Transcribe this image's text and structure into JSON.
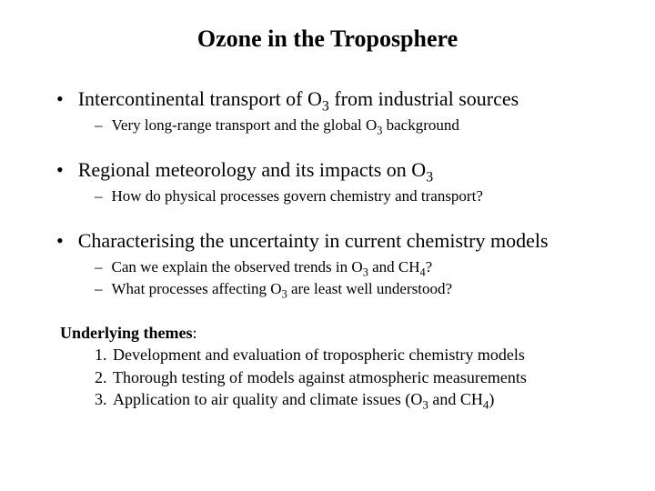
{
  "title_pre": "Ozone in the Troposphere",
  "b1_pre": "Intercontinental transport of O",
  "b1_sub": "3",
  "b1_post": " from industrial sources",
  "b1s1_pre": "Very long-range transport and the global O",
  "b1s1_sub": "3",
  "b1s1_post": " background",
  "b2_pre": "Regional meteorology and its impacts on O",
  "b2_sub": "3",
  "b2s1": "How do physical processes govern chemistry and transport?",
  "b3": "Characterising the uncertainty in current chemistry models",
  "b3s1_pre": "Can we explain the observed trends in O",
  "b3s1_sub1": "3",
  "b3s1_mid": " and CH",
  "b3s1_sub2": "4",
  "b3s1_post": "?",
  "b3s2_pre": "What processes affecting O",
  "b3s2_sub": "3",
  "b3s2_post": " are least well understood?",
  "themes_heading": "Underlying themes",
  "themes_colon": ":",
  "t1": "Development and evaluation of tropospheric chemistry models",
  "t2": "Thorough testing of models against atmospheric measurements",
  "t3_pre": "Application to air quality and climate issues  (O",
  "t3_sub1": "3",
  "t3_mid": " and CH",
  "t3_sub2": "4",
  "t3_post": ")",
  "n1": "1.",
  "n2": "2.",
  "n3": "3.",
  "bullet_char": "•",
  "dash_char": "–"
}
